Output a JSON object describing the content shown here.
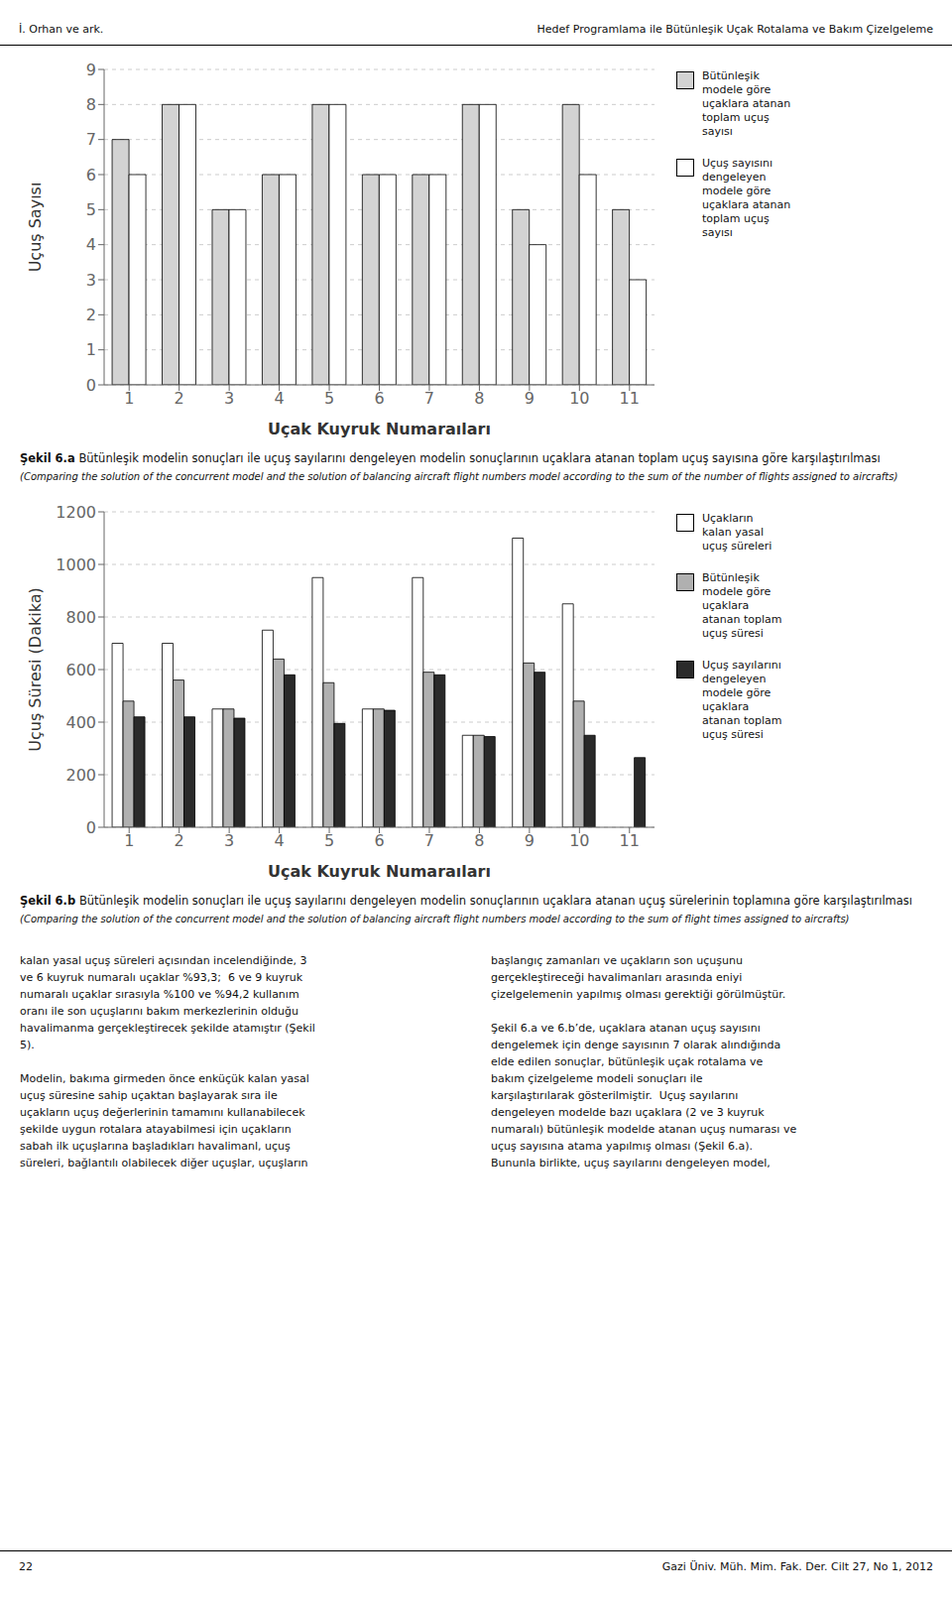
{
  "header": {
    "left": "İ. Orhan ve ark.",
    "right": "Hedef Programlama ile Bütünleşik Uçak Rotalama ve Bakım Çizelgeleme"
  },
  "chart_data": [
    {
      "type": "bar",
      "title": "Şekil 6.a",
      "subtitle": "Bütünleşik modelin sonuçları ile uçuş sayılarını dengeleyen modelin sonuçlarının uçaklara atanan toplam uçuş sayısına göre karşılaştırılması",
      "annotations": [
        "(Comparing the solution of the concurrent model and the solution of balancing aircraft flight numbers model according to the sum of the number of flights assigned to aircrafts)"
      ],
      "xlabel": "Uçak Kuyruk Numaraıları",
      "ylabel": "Uçuş Sayısı",
      "categories": [
        1,
        2,
        3,
        4,
        5,
        6,
        7,
        8,
        9,
        10,
        11
      ],
      "series": [
        {
          "name": "Bütünleşik\nmodele göre\nuçaklara atanan\ntoplam uçuş\nsayısı",
          "color": "#d3d3d3",
          "values": [
            7,
            8,
            5,
            6,
            8,
            6,
            6,
            8,
            5,
            8,
            5
          ]
        },
        {
          "name": "Uçuş sayısını\ndengeleyen\nmodele göre\nuçaklara atanan\ntoplam uçuş\nsayısı",
          "color": "#ffffff",
          "values": [
            6,
            8,
            5,
            6,
            8,
            6,
            6,
            8,
            4,
            6,
            3
          ]
        }
      ],
      "ylim": [
        0,
        9
      ],
      "yticks": [
        0,
        1,
        2,
        3,
        4,
        5,
        6,
        7,
        8,
        9
      ],
      "grid": true,
      "legend": "right"
    },
    {
      "type": "bar",
      "title": "Şekil 6.b",
      "subtitle": "Bütünleşik modelin sonuçları ile uçuş sayılarını dengeleyen modelin sonuçlarının uçaklara atanan uçuş sürelerinin toplamına göre karşılaştırılması",
      "annotations": [
        "(Comparing the solution of the concurrent model and the solution of balancing aircraft flight numbers model according to the sum of flight times assigned to aircrafts)"
      ],
      "xlabel": "Uçak Kuyruk Numaraıları",
      "ylabel": "Uçuş Süresi (Dakika)",
      "categories": [
        1,
        2,
        3,
        4,
        5,
        6,
        7,
        8,
        9,
        10,
        11
      ],
      "series": [
        {
          "name": "Uçakların\nkalan yasal\nuçuş süreleri",
          "color": "#ffffff",
          "values": [
            700,
            700,
            450,
            750,
            950,
            450,
            950,
            350,
            1100,
            850,
            0
          ]
        },
        {
          "name": "Bütünleşik\nmodele göre\nuçaklara\natanan toplam\nuçuş süresi",
          "color": "#b0b0b0",
          "values": [
            480,
            560,
            450,
            640,
            550,
            450,
            590,
            350,
            625,
            480,
            0
          ]
        },
        {
          "name": "Uçuş sayılarını\ndengeleyen\nmodele göre\nuçaklara\natanan toplam\nuçuş süresi",
          "color": "#2a2a2a",
          "values": [
            420,
            420,
            415,
            580,
            395,
            445,
            580,
            345,
            590,
            350,
            265
          ]
        }
      ],
      "ylim": [
        0,
        1200
      ],
      "yticks": [
        0,
        200,
        400,
        600,
        800,
        1000,
        1200
      ],
      "grid": true,
      "legend": "right"
    }
  ],
  "body": {
    "left": [
      [
        "kalan yasal uçuş süreleri açısından incelendiğinde, 3",
        "ve 6 kuyruk numaralı uçaklar %93,3;  6 ve 9 kuyruk",
        "numaralı uçaklar sırasıyla %100 ve %94,2 kullanım",
        "oranı ile son uçuşlarını bakım merkezlerinin olduğu",
        "havalimanma gerçekleştirecek şekilde atamıştır (Şekil",
        "5)."
      ],
      [
        "Modelin, bakıma girmeden önce enküçük kalan yasal",
        "uçuş süresine sahip uçaktan başlayarak sıra ile",
        "uçakların uçuş değerlerinin tamamını kullanabilecek",
        "şekilde uygun rotalara atayabilmesi için uçakların",
        "sabah ilk uçuşlarına başladıkları havalimanl, uçuş",
        "süreleri, bağlantılı olabilecek diğer uçuşlar, uçuşların"
      ]
    ],
    "right": [
      [
        "başlangıç zamanları ve uçakların son uçuşunu",
        "gerçekleştireceği havalimanları arasında eniyi",
        "çizelgelemenin yapılmış olması gerektiği görülmüştür."
      ],
      [
        "Şekil 6.a ve 6.b’de, uçaklara atanan uçuş sayısını",
        "dengelemek için denge sayısının 7 olarak alındığında",
        "elde edilen sonuçlar, bütünleşik uçak rotalama ve",
        "bakım çizelgeleme modeli sonuçları ile",
        "karşılaştırılarak gösterilmiştir.  Uçuş sayılarını",
        "dengeleyen modelde bazı uçaklara (2 ve 3 kuyruk",
        "numaralı) bütünleşik modelde atanan uçuş numarası ve",
        "uçuş sayısına atama yapılmış olması (Şekil 6.a).",
        "Bununla birlikte, uçuş sayılarını dengeleyen model,"
      ]
    ]
  },
  "footer": {
    "left": "22",
    "right": "Gazi Üniv. Müh. Mim. Fak. Der. Cilt 27, No 1, 2012"
  }
}
